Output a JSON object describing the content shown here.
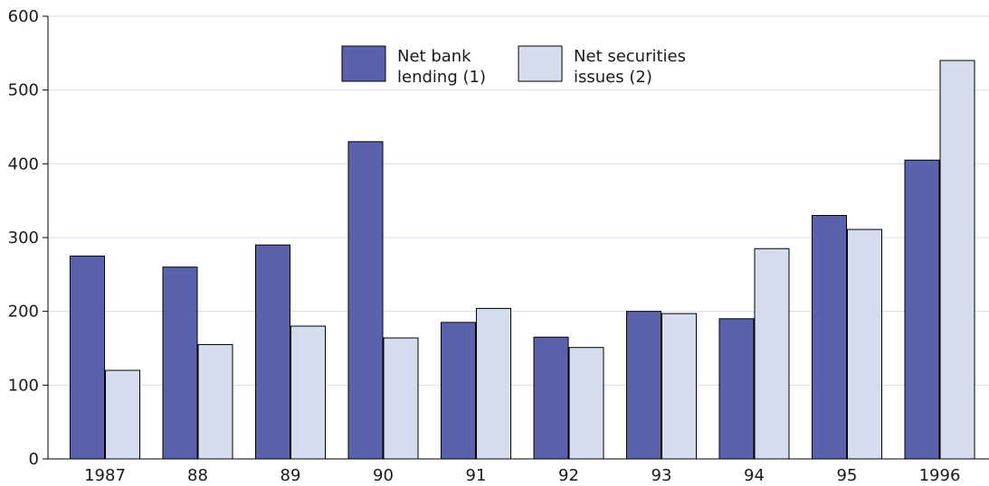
{
  "chart_data": {
    "type": "bar",
    "categories": [
      "1987",
      "88",
      "89",
      "90",
      "91",
      "92",
      "93",
      "94",
      "95",
      "1996"
    ],
    "series": [
      {
        "name": "Net bank lending (1)",
        "legend_lines": [
          "Net bank",
          "lending (1)"
        ],
        "color": "#5b62ad",
        "values": [
          275,
          260,
          290,
          430,
          185,
          165,
          200,
          190,
          330,
          405
        ]
      },
      {
        "name": "Net securities issues (2)",
        "legend_lines": [
          "Net securities",
          "issues (2)"
        ],
        "color": "#d4dcee",
        "values": [
          120,
          155,
          180,
          164,
          204,
          151,
          197,
          285,
          311,
          540
        ]
      }
    ],
    "yticks": [
      0,
      100,
      200,
      300,
      400,
      500,
      600
    ],
    "ylim": [
      0,
      600
    ],
    "grid": true,
    "legend_position": "top-center"
  }
}
